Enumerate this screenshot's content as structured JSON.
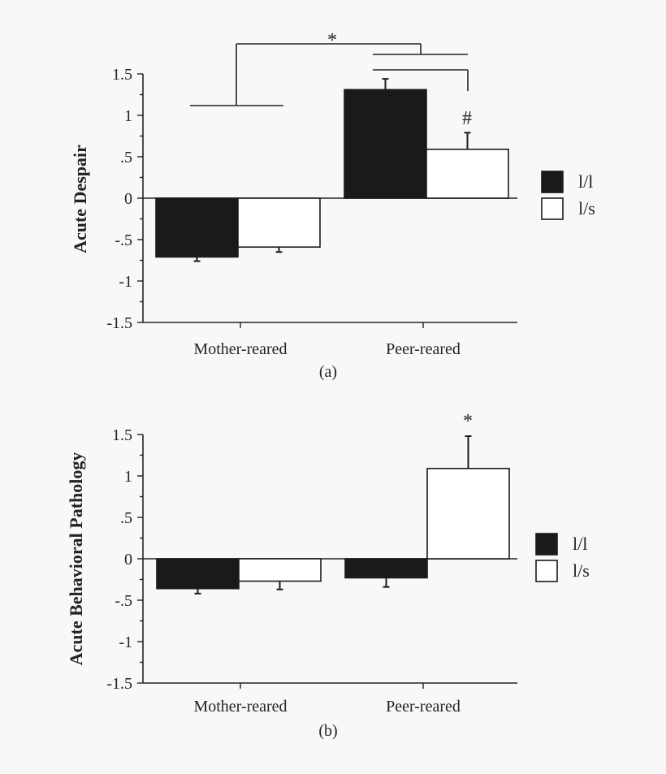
{
  "chart_data": [
    {
      "type": "bar",
      "panel_label": "(a)",
      "ylabel": "Acute Despair",
      "xlabel": "",
      "ylim": [
        -1.5,
        1.5
      ],
      "yticks": [
        1.5,
        1,
        0.5,
        0,
        -0.5,
        -1,
        -1.5
      ],
      "ytick_labels": [
        "1.5",
        "1",
        ".5",
        "0",
        "-.5",
        "-1",
        "-1.5"
      ],
      "categories": [
        "Mother-reared",
        "Peer-reared"
      ],
      "series": [
        {
          "name": "l/l",
          "color": "#1a1a1a",
          "values": [
            -0.71,
            1.31
          ],
          "errors": [
            0.05,
            0.13
          ]
        },
        {
          "name": "l/s",
          "color": "#ffffff",
          "values": [
            -0.59,
            0.59
          ],
          "errors": [
            0.06,
            0.2
          ]
        }
      ],
      "legend": [
        "l/l",
        "l/s"
      ],
      "legend_position": "right",
      "annotations": [
        "*",
        "#"
      ]
    },
    {
      "type": "bar",
      "panel_label": "(b)",
      "ylabel": "Acute Behavioral Pathology",
      "xlabel": "",
      "ylim": [
        -1.5,
        1.5
      ],
      "yticks": [
        1.5,
        1,
        0.5,
        0,
        -0.5,
        -1,
        -1.5
      ],
      "ytick_labels": [
        "1.5",
        "1",
        ".5",
        "0",
        "-.5",
        "-1",
        "-1.5"
      ],
      "categories": [
        "Mother-reared",
        "Peer-reared"
      ],
      "series": [
        {
          "name": "l/l",
          "color": "#1a1a1a",
          "values": [
            -0.36,
            -0.23
          ],
          "errors": [
            0.06,
            0.11
          ]
        },
        {
          "name": "l/s",
          "color": "#ffffff",
          "values": [
            -0.27,
            1.09
          ],
          "errors": [
            0.1,
            0.39
          ]
        }
      ],
      "legend": [
        "l/l",
        "l/s"
      ],
      "legend_position": "right",
      "annotations": [
        "*"
      ]
    }
  ]
}
